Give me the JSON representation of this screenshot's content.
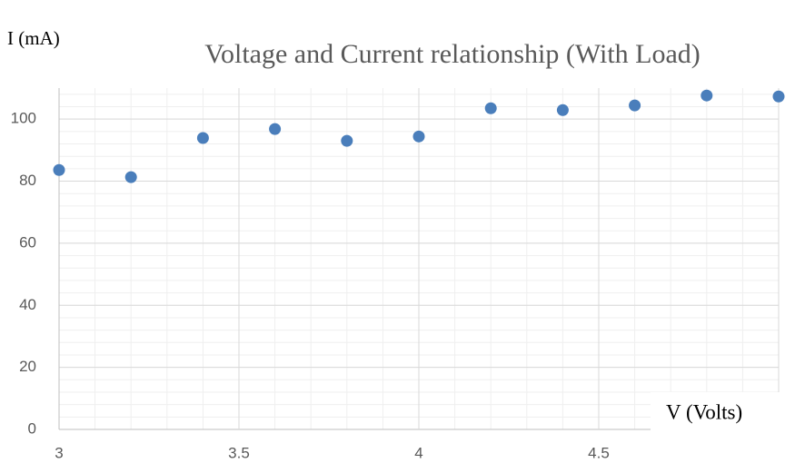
{
  "chart_data": {
    "type": "scatter",
    "title": "Voltage and Current relationship (With Load)",
    "x_label": "V (Volts)",
    "y_label": "I (mA)",
    "series": [
      {
        "name": "I (mA)",
        "color": "#4a7ebb",
        "x": [
          3.0,
          3.2,
          3.4,
          3.6,
          3.8,
          4.0,
          4.2,
          4.4,
          4.6,
          4.8,
          5.0
        ],
        "values": [
          83.6,
          81.3,
          93.9,
          96.8,
          93.0,
          94.4,
          103.5,
          102.9,
          104.4,
          107.6,
          107.3
        ]
      }
    ],
    "xlim": [
      3,
      5
    ],
    "ylim": [
      0,
      110
    ],
    "xticks": [
      3,
      3.5,
      4,
      4.5
    ],
    "yticks": [
      0,
      20,
      40,
      60,
      80,
      100
    ],
    "grid": true
  }
}
